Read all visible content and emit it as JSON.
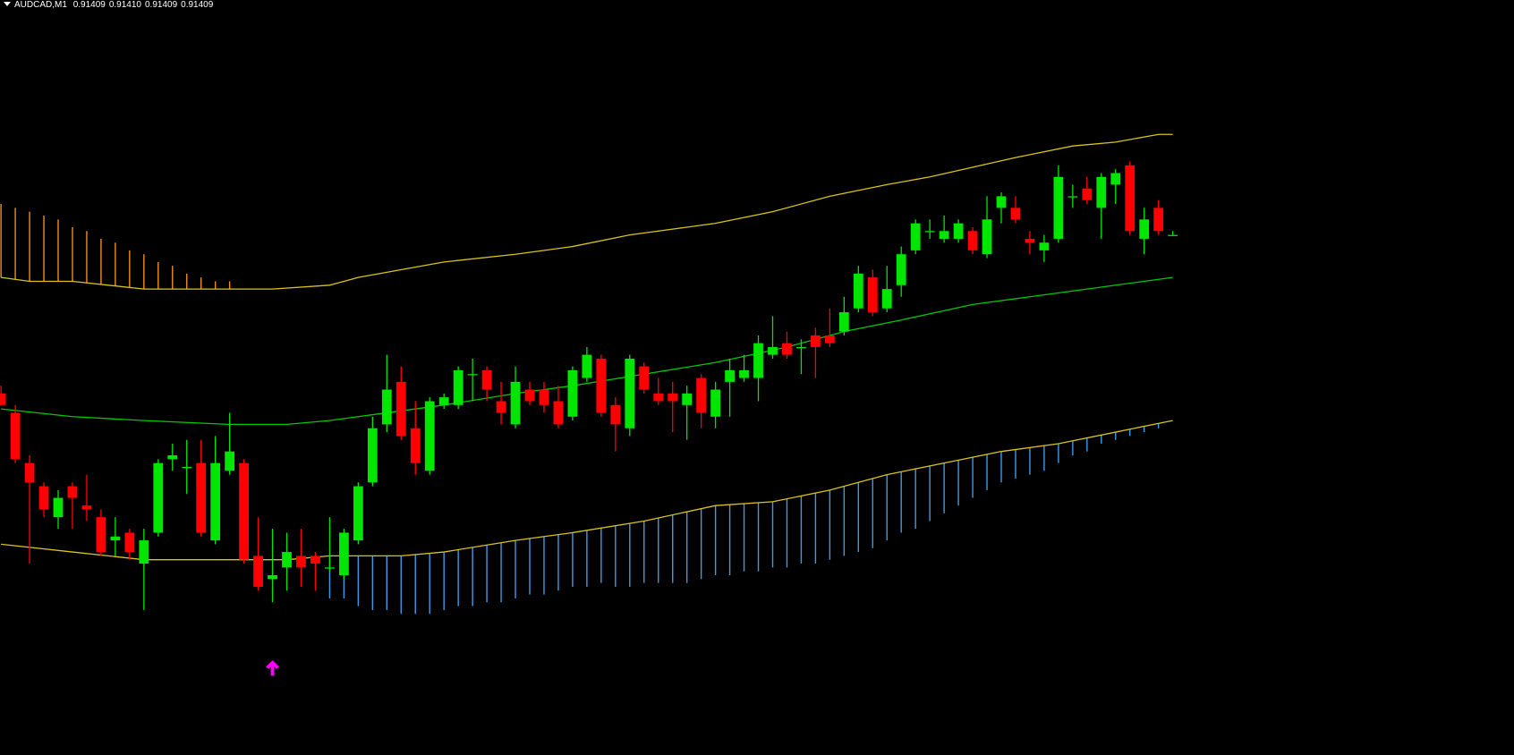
{
  "chart_data": {
    "type": "candlestick",
    "title": "AUDCAD,M1",
    "last_quote": [
      "0.91409",
      "0.91410",
      "0.91409",
      "0.91409"
    ],
    "xlim": [
      -0.07,
      105.88
    ],
    "ylim": [
      0.912745,
      0.9146975
    ],
    "up_color": "#00e600",
    "down_color": "#ff0000",
    "open": [
      0.91368,
      0.91363,
      0.9135,
      0.91344,
      0.91336,
      0.91344,
      0.91339,
      0.91336,
      0.9133,
      0.91332,
      0.91324,
      0.91332,
      0.91351,
      0.91349,
      0.9135,
      0.9133,
      0.91348,
      0.9135,
      0.91326,
      0.9132,
      0.91323,
      0.91326,
      0.91326,
      0.91323,
      0.91321,
      0.9133,
      0.91345,
      0.9136,
      0.91371,
      0.91359,
      0.91348,
      0.91365,
      0.91365,
      0.91373,
      0.91374,
      0.91366,
      0.9136,
      0.91369,
      0.91369,
      0.91366,
      0.91362,
      0.91372,
      0.91377,
      0.91365,
      0.91359,
      0.91375,
      0.91368,
      0.91368,
      0.91365,
      0.91372,
      0.91362,
      0.91371,
      0.91372,
      0.91372,
      0.91378,
      0.91381,
      0.9138,
      0.91383,
      0.91383,
      0.91384,
      0.9139,
      0.91398,
      0.9139,
      0.91396,
      0.91405,
      0.9141,
      0.91408,
      0.91408,
      0.9141,
      0.91404,
      0.91416,
      0.91416,
      0.91408,
      0.91405,
      0.91408,
      0.91419,
      0.91421,
      0.91416,
      0.91422,
      0.91427,
      0.91408,
      0.91416,
      0.91409
    ],
    "high": [
      0.9137,
      0.91365,
      0.91352,
      0.91345,
      0.91343,
      0.91345,
      0.91347,
      0.91338,
      0.91336,
      0.91333,
      0.91333,
      0.91351,
      0.91355,
      0.91356,
      0.91356,
      0.91357,
      0.91363,
      0.91351,
      0.91336,
      0.91333,
      0.91332,
      0.91333,
      0.91327,
      0.91336,
      0.91333,
      0.91345,
      0.91362,
      0.91378,
      0.91375,
      0.91366,
      0.91367,
      0.91368,
      0.91375,
      0.91377,
      0.91375,
      0.91371,
      0.91375,
      0.91371,
      0.91371,
      0.9137,
      0.91375,
      0.9138,
      0.91378,
      0.91367,
      0.91378,
      0.91376,
      0.91372,
      0.91371,
      0.9137,
      0.91373,
      0.91371,
      0.91377,
      0.91378,
      0.91383,
      0.91388,
      0.91384,
      0.91382,
      0.91385,
      0.9139,
      0.91393,
      0.91401,
      0.914,
      0.91401,
      0.91406,
      0.91413,
      0.91413,
      0.91414,
      0.91413,
      0.91411,
      0.91419,
      0.9142,
      0.91419,
      0.9141,
      0.91409,
      0.91427,
      0.91422,
      0.91424,
      0.91425,
      0.91426,
      0.91428,
      0.91416,
      0.91418,
      0.9141
    ],
    "low": [
      0.91365,
      0.9135,
      0.91324,
      0.91336,
      0.91333,
      0.91333,
      0.91335,
      0.91326,
      0.91326,
      0.91325,
      0.91312,
      0.91331,
      0.91348,
      0.91342,
      0.91331,
      0.91329,
      0.91347,
      0.91324,
      0.91317,
      0.91314,
      0.91317,
      0.91318,
      0.91317,
      0.91322,
      0.9132,
      0.91329,
      0.91344,
      0.91358,
      0.91356,
      0.91347,
      0.91347,
      0.91364,
      0.91364,
      0.91366,
      0.91366,
      0.9136,
      0.91359,
      0.91365,
      0.91363,
      0.91359,
      0.91361,
      0.91371,
      0.91362,
      0.91353,
      0.91357,
      0.91368,
      0.91365,
      0.91358,
      0.91356,
      0.91359,
      0.91359,
      0.91362,
      0.91371,
      0.91366,
      0.91377,
      0.91377,
      0.91373,
      0.91372,
      0.9138,
      0.91383,
      0.91389,
      0.91388,
      0.91389,
      0.91393,
      0.91404,
      0.91408,
      0.91407,
      0.91407,
      0.91404,
      0.91403,
      0.91412,
      0.91412,
      0.91404,
      0.91402,
      0.91407,
      0.91416,
      0.91417,
      0.91408,
      0.91417,
      0.91409,
      0.91404,
      0.91409,
      0.91409
    ],
    "close": [
      0.91365,
      0.91351,
      0.91345,
      0.91338,
      0.91341,
      0.91341,
      0.91338,
      0.91327,
      0.91331,
      0.91327,
      0.9133,
      0.9135,
      0.91352,
      0.91349,
      0.91332,
      0.9135,
      0.91353,
      0.91325,
      0.91318,
      0.91321,
      0.91327,
      0.91323,
      0.91324,
      0.91323,
      0.91332,
      0.91344,
      0.91359,
      0.91369,
      0.91357,
      0.9135,
      0.91366,
      0.91367,
      0.91374,
      0.91373,
      0.91369,
      0.91363,
      0.91371,
      0.91366,
      0.91365,
      0.9136,
      0.91374,
      0.91378,
      0.91363,
      0.9136,
      0.91377,
      0.91369,
      0.91366,
      0.91366,
      0.91368,
      0.91363,
      0.91369,
      0.91374,
      0.91374,
      0.91381,
      0.9138,
      0.91378,
      0.9138,
      0.9138,
      0.91381,
      0.91389,
      0.91399,
      0.91389,
      0.91395,
      0.91404,
      0.91412,
      0.9141,
      0.9141,
      0.91412,
      0.91405,
      0.91413,
      0.91419,
      0.91413,
      0.91407,
      0.91407,
      0.91424,
      0.91419,
      0.91418,
      0.91424,
      0.91425,
      0.9141,
      0.91413,
      0.9141,
      0.91409
    ],
    "lines": [
      {
        "color": "#d8c21c",
        "x": [
          0,
          2,
          5,
          10,
          16,
          19,
          23,
          25,
          28,
          31,
          36,
          40,
          44,
          50,
          54,
          58,
          62,
          65,
          71,
          75,
          78,
          81,
          82
        ],
        "values": [
          0.91398,
          0.91397,
          0.91397,
          0.91395,
          0.91395,
          0.91395,
          0.91396,
          0.91398,
          0.914,
          0.91402,
          0.91404,
          0.91406,
          0.91409,
          0.91412,
          0.91415,
          0.91419,
          0.91422,
          0.91424,
          0.91429,
          0.91432,
          0.91433,
          0.91435,
          0.91435
        ]
      },
      {
        "color": "#00c800",
        "x": [
          0,
          5,
          10,
          16,
          20,
          23,
          27,
          31,
          36,
          40,
          45,
          50,
          55,
          59,
          63,
          68,
          72,
          76,
          82
        ],
        "values": [
          0.91364,
          0.91362,
          0.91361,
          0.9136,
          0.9136,
          0.91361,
          0.91363,
          0.91365,
          0.91368,
          0.9137,
          0.91373,
          0.91376,
          0.9138,
          0.91384,
          0.91387,
          0.91391,
          0.91393,
          0.91395,
          0.91398
        ]
      },
      {
        "color": "#d8c21c",
        "x": [
          0,
          5,
          10,
          16,
          20,
          23,
          28,
          31,
          36,
          40,
          45,
          50,
          54,
          58,
          62,
          66,
          70,
          74,
          78,
          82
        ],
        "values": [
          0.91329,
          0.91327,
          0.91325,
          0.91325,
          0.91325,
          0.91326,
          0.91326,
          0.91327,
          0.9133,
          0.91332,
          0.91335,
          0.91339,
          0.9134,
          0.91343,
          0.91347,
          0.9135,
          0.91353,
          0.91355,
          0.91358,
          0.91361
        ]
      }
    ],
    "histograms": [
      {
        "color": "#f08c1e",
        "x": [
          0,
          1,
          2,
          3,
          4,
          5,
          6,
          7,
          8,
          9,
          10,
          11,
          12,
          13,
          14,
          15,
          16
        ],
        "values": [
          0.91417,
          0.91416,
          0.91415,
          0.91414,
          0.91413,
          0.91411,
          0.9141,
          0.91408,
          0.91407,
          0.91405,
          0.91404,
          0.91402,
          0.91401,
          0.91399,
          0.91398,
          0.91397,
          0.91397
        ]
      },
      {
        "color": "#3a9be8",
        "x": [
          23,
          24,
          25,
          26,
          27,
          28,
          29,
          30,
          31,
          32,
          33,
          34,
          35,
          36,
          37,
          38,
          39,
          40,
          41,
          42,
          43,
          44,
          45,
          46,
          47,
          48,
          49,
          50,
          51,
          52,
          53,
          54,
          55,
          56,
          57,
          58,
          59,
          60,
          61,
          62,
          63,
          64,
          65,
          66,
          67,
          68,
          69,
          70,
          71,
          72,
          73,
          74,
          75,
          76,
          77,
          78,
          79,
          80,
          81
        ],
        "values": [
          0.91315,
          0.91315,
          0.91313,
          0.91312,
          0.91312,
          0.91311,
          0.91311,
          0.91311,
          0.91312,
          0.91313,
          0.91313,
          0.91314,
          0.91314,
          0.91315,
          0.91316,
          0.91316,
          0.91317,
          0.91318,
          0.91318,
          0.91319,
          0.91318,
          0.91318,
          0.91319,
          0.91319,
          0.91319,
          0.91319,
          0.9132,
          0.91321,
          0.91321,
          0.91322,
          0.91322,
          0.91323,
          0.91323,
          0.91324,
          0.91324,
          0.91325,
          0.91326,
          0.91327,
          0.91328,
          0.9133,
          0.91332,
          0.91333,
          0.91335,
          0.91337,
          0.91339,
          0.91341,
          0.91343,
          0.91345,
          0.91346,
          0.91347,
          0.91348,
          0.9135,
          0.91352,
          0.91353,
          0.91355,
          0.91356,
          0.91357,
          0.91358,
          0.91359
        ]
      }
    ],
    "markers": [
      {
        "color": "#ff00ff",
        "x": 19,
        "value": 0.91297
      }
    ]
  }
}
